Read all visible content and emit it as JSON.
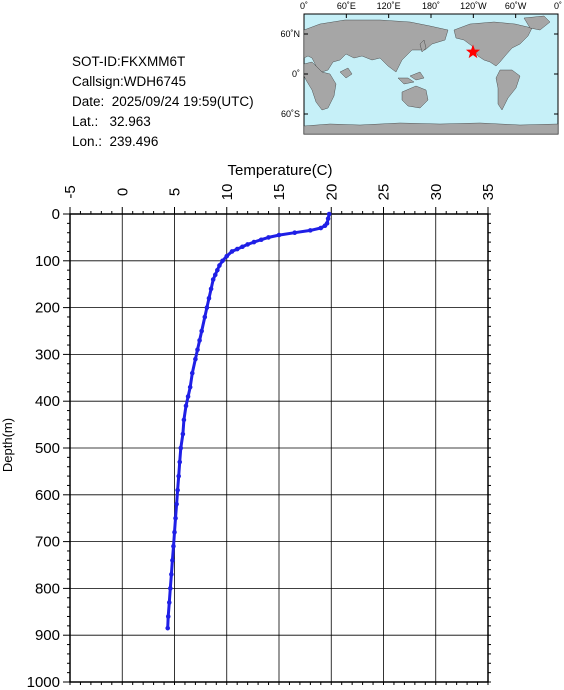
{
  "station": {
    "sot_id": "SOT-ID:FKXMM6T",
    "callsign": "Callsign:WDH6745",
    "date": "Date:  2025/09/24 19:59(UTC)",
    "lat": "Lat.:   32.963",
    "lon": "Lon.:  239.496"
  },
  "map": {
    "lon_labels": [
      "0˚",
      "60˚E",
      "120˚E",
      "180˚",
      "120˚W",
      "60˚W",
      "0˚"
    ],
    "lat_labels": [
      "60˚N",
      "0˚",
      "60˚S"
    ],
    "marker_lat": 32.963,
    "marker_lon": 239.496,
    "ocean_color": "#c6f0f8",
    "land_color": "#a6a6a6",
    "marker_color": "#ff0000"
  },
  "chart_data": {
    "type": "line",
    "xlabel": "Temperature(C)",
    "ylabel": "Depth(m)",
    "xlim": [
      -5,
      35
    ],
    "ylim": [
      0,
      1000
    ],
    "x_ticks": [
      -5,
      0,
      5,
      10,
      15,
      20,
      25,
      30,
      35
    ],
    "y_ticks": [
      0,
      100,
      200,
      300,
      400,
      500,
      600,
      700,
      800,
      900,
      1000
    ],
    "grid": true,
    "series_color": "#1f1fe6",
    "series": [
      {
        "temperature": [
          19.8,
          19.7,
          19.6,
          19.4,
          19.0,
          18.0,
          16.5,
          15.0,
          14.0,
          13.3,
          12.6,
          12.0,
          11.5,
          11.0,
          10.5,
          10.0,
          9.6,
          9.3,
          9.1,
          8.9,
          8.7,
          8.5,
          8.3,
          8.1,
          7.9,
          7.6,
          7.4,
          7.2,
          7.0,
          6.7,
          6.5,
          6.3,
          6.1,
          5.9,
          5.8,
          5.6,
          5.5,
          5.4,
          5.3,
          5.2,
          5.1,
          5.0,
          4.9,
          4.8,
          4.7,
          4.6,
          4.5,
          4.4,
          4.35
        ],
        "depth": [
          0,
          10,
          20,
          25,
          30,
          35,
          40,
          45,
          50,
          55,
          60,
          65,
          70,
          75,
          80,
          90,
          100,
          110,
          120,
          130,
          140,
          160,
          180,
          200,
          220,
          250,
          270,
          290,
          310,
          340,
          370,
          390,
          410,
          440,
          470,
          500,
          530,
          560,
          590,
          620,
          650,
          680,
          710,
          740,
          770,
          800,
          830,
          860,
          885
        ]
      }
    ]
  }
}
